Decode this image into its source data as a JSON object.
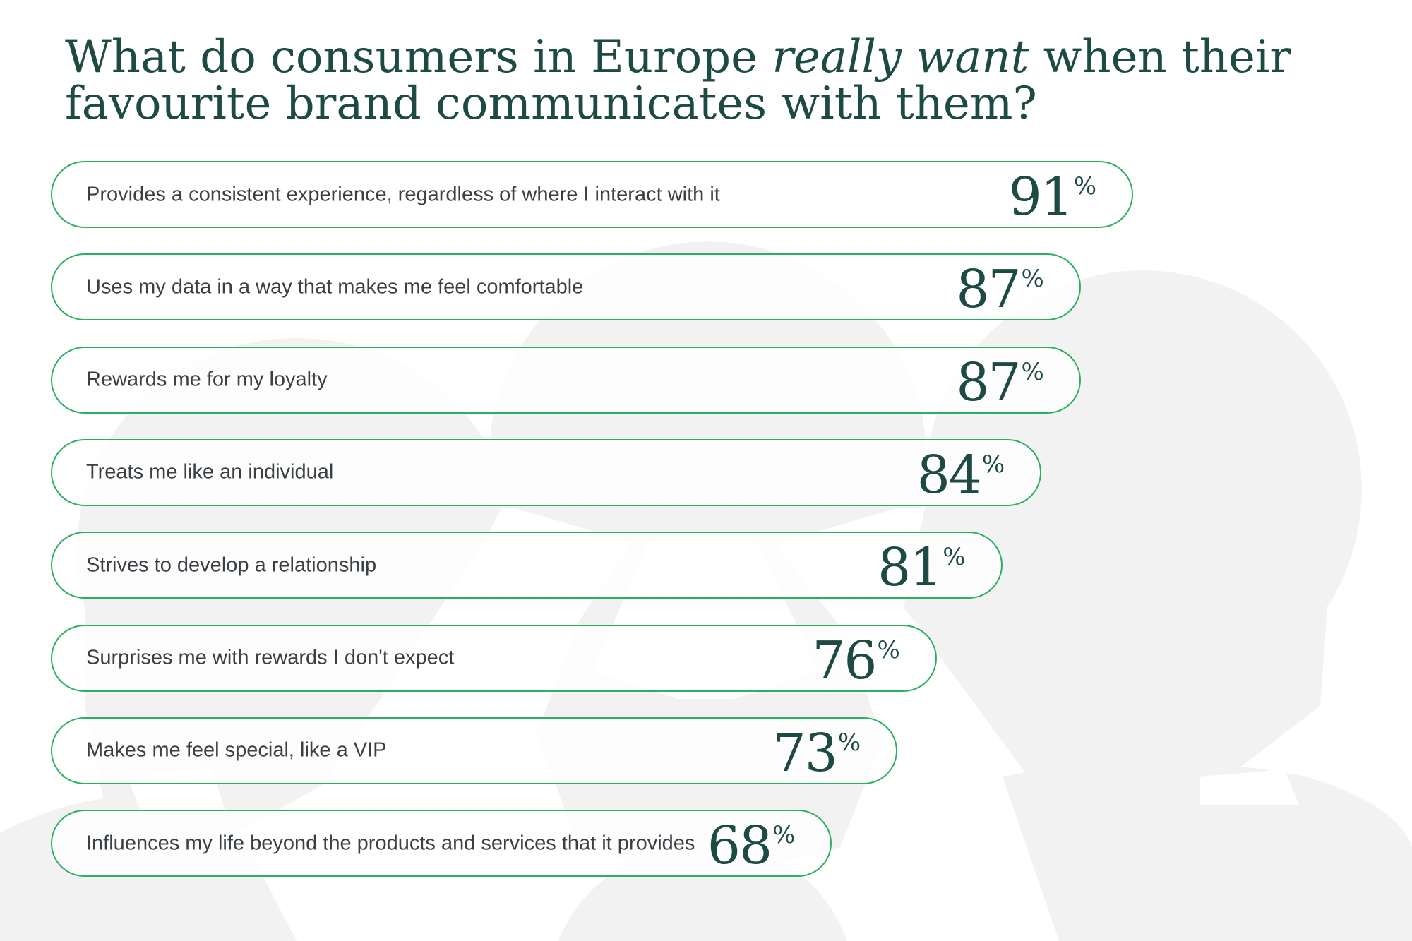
{
  "title": {
    "part1": "What do consumers in Europe ",
    "emphasis": "really want",
    "part2": " when their favourite brand communicates with them?"
  },
  "colors": {
    "border": "#2bb061",
    "heading": "#1d4a43",
    "label": "#3a3f44",
    "watermark": "#f2f2f2"
  },
  "chart_data": {
    "type": "bar",
    "orientation": "horizontal",
    "unit": "%",
    "categories": [
      "Provides a consistent experience, regardless of where I interact with it",
      "Uses my data in a way that makes me feel comfortable",
      "Rewards me for my loyalty",
      "Treats me like an individual",
      "Strives to develop a relationship",
      "Surprises me with rewards I don't expect",
      "Makes me feel special, like a VIP",
      "Influences my life beyond the products and services that it provides"
    ],
    "values": [
      91,
      87,
      87,
      84,
      81,
      76,
      73,
      68
    ]
  }
}
